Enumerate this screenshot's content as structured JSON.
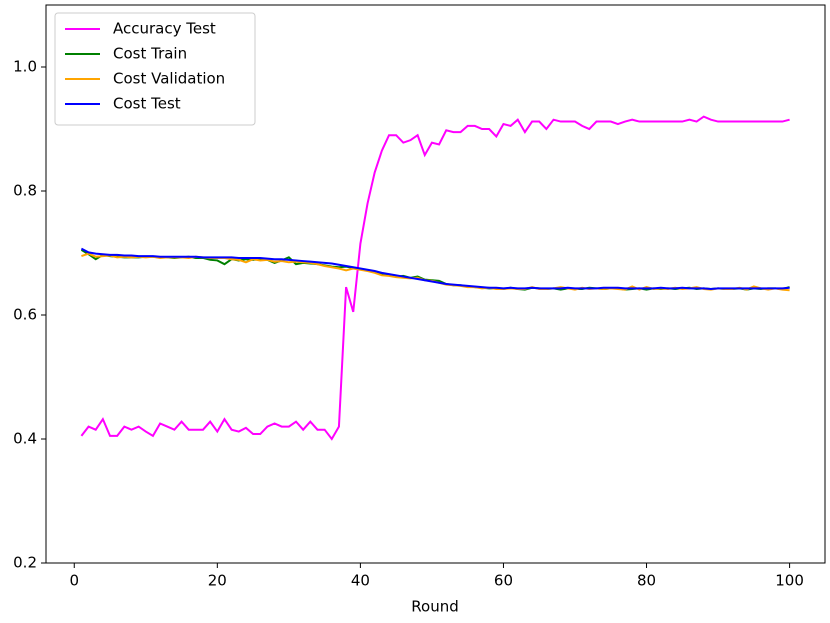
{
  "chart_data": {
    "type": "line",
    "xlabel": "Round",
    "x": [
      1,
      2,
      3,
      4,
      5,
      6,
      7,
      8,
      9,
      10,
      11,
      12,
      13,
      14,
      15,
      16,
      17,
      18,
      19,
      20,
      21,
      22,
      23,
      24,
      25,
      26,
      27,
      28,
      29,
      30,
      31,
      32,
      33,
      34,
      35,
      36,
      37,
      38,
      39,
      40,
      41,
      42,
      43,
      44,
      45,
      46,
      47,
      48,
      49,
      50,
      51,
      52,
      53,
      54,
      55,
      56,
      57,
      58,
      59,
      60,
      61,
      62,
      63,
      64,
      65,
      66,
      67,
      68,
      69,
      70,
      71,
      72,
      73,
      74,
      75,
      76,
      77,
      78,
      79,
      80,
      81,
      82,
      83,
      84,
      85,
      86,
      87,
      88,
      89,
      90,
      91,
      92,
      93,
      94,
      95,
      96,
      97,
      98,
      99,
      100
    ],
    "series": [
      {
        "name": "Accuracy Test",
        "color": "#ff00ff",
        "values": [
          0.405,
          0.42,
          0.415,
          0.432,
          0.405,
          0.405,
          0.42,
          0.415,
          0.42,
          0.412,
          0.405,
          0.425,
          0.42,
          0.415,
          0.428,
          0.415,
          0.415,
          0.415,
          0.428,
          0.412,
          0.432,
          0.415,
          0.412,
          0.418,
          0.408,
          0.408,
          0.42,
          0.425,
          0.42,
          0.42,
          0.428,
          0.415,
          0.428,
          0.415,
          0.415,
          0.4,
          0.42,
          0.645,
          0.605,
          0.715,
          0.78,
          0.83,
          0.865,
          0.89,
          0.89,
          0.878,
          0.882,
          0.89,
          0.858,
          0.878,
          0.875,
          0.898,
          0.895,
          0.895,
          0.905,
          0.905,
          0.9,
          0.9,
          0.888,
          0.908,
          0.905,
          0.915,
          0.895,
          0.912,
          0.912,
          0.9,
          0.915,
          0.912,
          0.912,
          0.912,
          0.905,
          0.9,
          0.912,
          0.912,
          0.912,
          0.908,
          0.912,
          0.915,
          0.912,
          0.912,
          0.912,
          0.912,
          0.912,
          0.912,
          0.912,
          0.915,
          0.912,
          0.92,
          0.915,
          0.912,
          0.912,
          0.912,
          0.912,
          0.912,
          0.912,
          0.912,
          0.912,
          0.912,
          0.912,
          0.915
        ]
      },
      {
        "name": "Cost Train",
        "color": "#008000",
        "values": [
          0.705,
          0.698,
          0.69,
          0.697,
          0.695,
          0.694,
          0.693,
          0.693,
          0.693,
          0.694,
          0.694,
          0.693,
          0.693,
          0.692,
          0.693,
          0.694,
          0.692,
          0.692,
          0.689,
          0.688,
          0.682,
          0.69,
          0.688,
          0.69,
          0.689,
          0.69,
          0.689,
          0.684,
          0.688,
          0.693,
          0.682,
          0.684,
          0.683,
          0.682,
          0.68,
          0.678,
          0.677,
          0.678,
          0.676,
          0.674,
          0.672,
          0.67,
          0.667,
          0.665,
          0.662,
          0.663,
          0.66,
          0.662,
          0.657,
          0.656,
          0.655,
          0.65,
          0.648,
          0.648,
          0.646,
          0.645,
          0.644,
          0.643,
          0.643,
          0.642,
          0.644,
          0.642,
          0.641,
          0.644,
          0.643,
          0.642,
          0.643,
          0.641,
          0.643,
          0.642,
          0.642,
          0.644,
          0.643,
          0.642,
          0.643,
          0.643,
          0.641,
          0.642,
          0.643,
          0.641,
          0.643,
          0.642,
          0.643,
          0.642,
          0.643,
          0.644,
          0.642,
          0.643,
          0.642,
          0.643,
          0.642,
          0.642,
          0.643,
          0.641,
          0.643,
          0.642,
          0.643,
          0.643,
          0.642,
          0.645
        ]
      },
      {
        "name": "Cost Validation",
        "color": "#ffa500",
        "values": [
          0.695,
          0.699,
          0.694,
          0.695,
          0.696,
          0.693,
          0.694,
          0.693,
          0.694,
          0.693,
          0.694,
          0.692,
          0.693,
          0.693,
          0.693,
          0.692,
          0.694,
          0.693,
          0.692,
          0.692,
          0.692,
          0.69,
          0.689,
          0.685,
          0.69,
          0.688,
          0.689,
          0.686,
          0.687,
          0.685,
          0.686,
          0.685,
          0.684,
          0.682,
          0.679,
          0.677,
          0.675,
          0.672,
          0.675,
          0.673,
          0.671,
          0.668,
          0.664,
          0.663,
          0.661,
          0.66,
          0.659,
          0.66,
          0.656,
          0.655,
          0.652,
          0.649,
          0.648,
          0.647,
          0.645,
          0.645,
          0.643,
          0.644,
          0.642,
          0.642,
          0.643,
          0.642,
          0.642,
          0.645,
          0.642,
          0.642,
          0.643,
          0.645,
          0.643,
          0.641,
          0.644,
          0.642,
          0.643,
          0.642,
          0.643,
          0.642,
          0.641,
          0.646,
          0.641,
          0.645,
          0.642,
          0.643,
          0.642,
          0.644,
          0.642,
          0.643,
          0.645,
          0.642,
          0.641,
          0.643,
          0.642,
          0.642,
          0.644,
          0.641,
          0.646,
          0.643,
          0.641,
          0.643,
          0.641,
          0.64
        ]
      },
      {
        "name": "Cost Test",
        "color": "#0000ff",
        "values": [
          0.707,
          0.701,
          0.699,
          0.698,
          0.697,
          0.697,
          0.696,
          0.696,
          0.695,
          0.695,
          0.695,
          0.694,
          0.694,
          0.694,
          0.694,
          0.694,
          0.694,
          0.693,
          0.693,
          0.693,
          0.693,
          0.693,
          0.692,
          0.692,
          0.692,
          0.692,
          0.691,
          0.69,
          0.69,
          0.689,
          0.688,
          0.687,
          0.686,
          0.685,
          0.684,
          0.683,
          0.681,
          0.679,
          0.677,
          0.675,
          0.673,
          0.671,
          0.668,
          0.666,
          0.664,
          0.662,
          0.66,
          0.658,
          0.656,
          0.654,
          0.652,
          0.65,
          0.649,
          0.648,
          0.647,
          0.646,
          0.645,
          0.644,
          0.644,
          0.643,
          0.644,
          0.643,
          0.643,
          0.644,
          0.643,
          0.643,
          0.643,
          0.643,
          0.644,
          0.643,
          0.643,
          0.643,
          0.643,
          0.644,
          0.644,
          0.644,
          0.643,
          0.643,
          0.643,
          0.643,
          0.643,
          0.644,
          0.643,
          0.643,
          0.644,
          0.643,
          0.643,
          0.643,
          0.642,
          0.643,
          0.643,
          0.643,
          0.643,
          0.643,
          0.643,
          0.643,
          0.643,
          0.643,
          0.643,
          0.644
        ]
      }
    ],
    "xlim": [
      -3.95,
      104.95
    ],
    "xticks": [
      0,
      20,
      40,
      60,
      80,
      100
    ],
    "ylim": [
      0.2,
      1.1
    ],
    "yticks": [
      0.2,
      0.4,
      0.6,
      0.8,
      {
        "value": 1,
        "label": "1.0"
      }
    ],
    "legend": "upper left"
  }
}
